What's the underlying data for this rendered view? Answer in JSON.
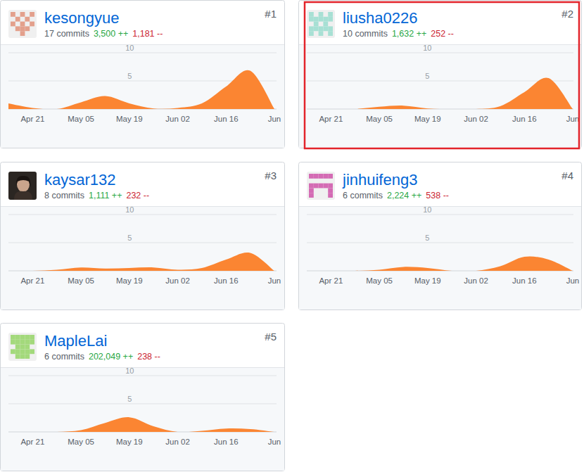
{
  "chart_data": [
    {
      "type": "area",
      "title": "kesongyue",
      "annotations": [
        "#1",
        "17 commits",
        "3,500 ++",
        "1,181 --"
      ],
      "categories": [
        null,
        "Apr 21",
        null,
        "May 05",
        null,
        "May 19",
        null,
        "Jun 02",
        null,
        "Jun 16",
        null,
        "Jun"
      ],
      "values": [
        1,
        0.2,
        0,
        1.2,
        2.3,
        1,
        0.1,
        0.2,
        1,
        4,
        6.8,
        0
      ],
      "color": "#fb8532",
      "ylim": [
        0,
        10
      ],
      "yticks": [
        5,
        10
      ],
      "grid": true
    },
    {
      "type": "area",
      "title": "liusha0226",
      "annotations": [
        "#2",
        "10 commits",
        "1,632 ++",
        "252 --"
      ],
      "categories": [
        null,
        "Apr 21",
        null,
        "May 05",
        null,
        "May 19",
        null,
        "Jun 02",
        null,
        "Jun 16",
        null,
        "Jun"
      ],
      "values": [
        0,
        0,
        0,
        0.4,
        0.6,
        0.1,
        0,
        0,
        0.5,
        3,
        5.5,
        0
      ],
      "color": "#fb8532",
      "ylim": [
        0,
        10
      ],
      "yticks": [
        5,
        10
      ],
      "grid": true
    },
    {
      "type": "area",
      "title": "kaysar132",
      "annotations": [
        "#3",
        "8 commits",
        "1,111 ++",
        "232 --"
      ],
      "categories": [
        null,
        "Apr 21",
        null,
        "May 05",
        null,
        "May 19",
        null,
        "Jun 02",
        null,
        "Jun 16",
        null,
        "Jun"
      ],
      "values": [
        0,
        0,
        0.2,
        0.6,
        0.4,
        0.5,
        0.6,
        0.2,
        0.5,
        2,
        3.2,
        0
      ],
      "color": "#fb8532",
      "ylim": [
        0,
        10
      ],
      "yticks": [
        5,
        10
      ],
      "grid": true
    },
    {
      "type": "area",
      "title": "jinhuifeng3",
      "annotations": [
        "#4",
        "6 commits",
        "2,224 ++",
        "538 --"
      ],
      "categories": [
        null,
        "Apr 21",
        null,
        "May 05",
        null,
        "May 19",
        null,
        "Jun 02",
        null,
        "Jun 16",
        null,
        "Jun"
      ],
      "values": [
        0,
        0,
        0,
        0.2,
        0.7,
        0.5,
        0,
        0,
        0.8,
        2.5,
        2,
        0
      ],
      "color": "#fb8532",
      "ylim": [
        0,
        10
      ],
      "yticks": [
        5,
        10
      ],
      "grid": true
    },
    {
      "type": "area",
      "title": "MapleLai",
      "annotations": [
        "#5",
        "6 commits",
        "202,049 ++",
        "238 --"
      ],
      "categories": [
        null,
        "Apr 21",
        null,
        "May 05",
        null,
        "May 19",
        null,
        "Jun 02",
        null,
        "Jun 16",
        null,
        "Jun"
      ],
      "values": [
        0,
        0,
        0,
        0.3,
        1.6,
        2.6,
        1,
        0,
        0.2,
        0.6,
        0.5,
        0
      ],
      "color": "#fb8532",
      "ylim": [
        0,
        10
      ],
      "yticks": [
        5,
        10
      ],
      "grid": true
    }
  ]
}
